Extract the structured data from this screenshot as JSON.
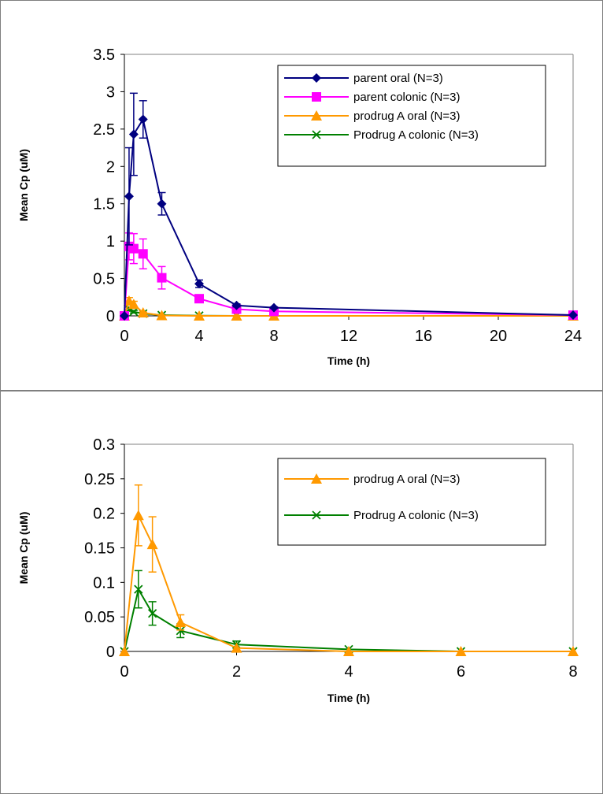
{
  "chart_data": [
    {
      "type": "line",
      "xlabel": "Time (h)",
      "ylabel": "Mean Cp (uM)",
      "xlim": [
        0,
        24
      ],
      "ylim": [
        0,
        3.5
      ],
      "xticks": [
        "0",
        "4",
        "8",
        "12",
        "16",
        "20",
        "24"
      ],
      "yticks": [
        "0",
        "0.5",
        "1",
        "1.5",
        "2",
        "2.5",
        "3",
        "3.5"
      ],
      "grid": false,
      "legend_position": "top-right",
      "x": [
        0,
        0.25,
        0.5,
        1,
        2,
        4,
        6,
        8,
        24
      ],
      "series": [
        {
          "name": "parent oral (N=3)",
          "color": "#000080",
          "marker": "diamond",
          "values": [
            0,
            1.6,
            2.43,
            2.63,
            1.5,
            0.43,
            0.14,
            0.11,
            0.01
          ],
          "errors": [
            0,
            0.65,
            0.55,
            0.25,
            0.15,
            0.05,
            0.02,
            0.01,
            0
          ]
        },
        {
          "name": "parent colonic (N=3)",
          "color": "#FF00FF",
          "marker": "square",
          "values": [
            0,
            0.93,
            0.9,
            0.83,
            0.51,
            0.23,
            0.09,
            0.06,
            0.01
          ],
          "errors": [
            0,
            0.18,
            0.2,
            0.2,
            0.15,
            0.05,
            0.02,
            0.01,
            0
          ]
        },
        {
          "name": "prodrug A oral (N=3)",
          "color": "#FF9900",
          "marker": "triangle",
          "values": [
            0,
            0.2,
            0.155,
            0.042,
            0.005,
            0,
            0,
            0,
            0
          ],
          "errors": [
            0,
            0.045,
            0.04,
            0.01,
            0,
            0,
            0,
            0,
            0
          ]
        },
        {
          "name": "Prodrug A colonic (N=3)",
          "color": "#008000",
          "marker": "x",
          "values": [
            0,
            0.09,
            0.055,
            0.03,
            0.01,
            0.003,
            0,
            0,
            0
          ],
          "errors": [
            0,
            0.027,
            0.017,
            0.01,
            0.005,
            0,
            0,
            0,
            0
          ]
        }
      ]
    },
    {
      "type": "line",
      "xlabel": "Time (h)",
      "ylabel": "Mean Cp (uM)",
      "xlim": [
        0,
        8
      ],
      "ylim": [
        0,
        0.3
      ],
      "xticks": [
        "0",
        "2",
        "4",
        "6",
        "8"
      ],
      "yticks": [
        "0",
        "0.05",
        "0.1",
        "0.15",
        "0.2",
        "0.25",
        "0.3"
      ],
      "grid": false,
      "legend_position": "top-right",
      "x": [
        0,
        0.25,
        0.5,
        1,
        2,
        4,
        6,
        8
      ],
      "series": [
        {
          "name": "prodrug A oral (N=3)",
          "color": "#FF9900",
          "marker": "triangle",
          "values": [
            0,
            0.197,
            0.155,
            0.042,
            0.005,
            0,
            0,
            0
          ],
          "errors": [
            0,
            0.044,
            0.04,
            0.011,
            0,
            0,
            0,
            0
          ]
        },
        {
          "name": "Prodrug A colonic (N=3)",
          "color": "#008000",
          "marker": "x",
          "values": [
            0,
            0.09,
            0.055,
            0.03,
            0.01,
            0.003,
            0,
            0
          ],
          "errors": [
            0,
            0.027,
            0.017,
            0.01,
            0.005,
            0,
            0,
            0
          ]
        }
      ]
    }
  ]
}
